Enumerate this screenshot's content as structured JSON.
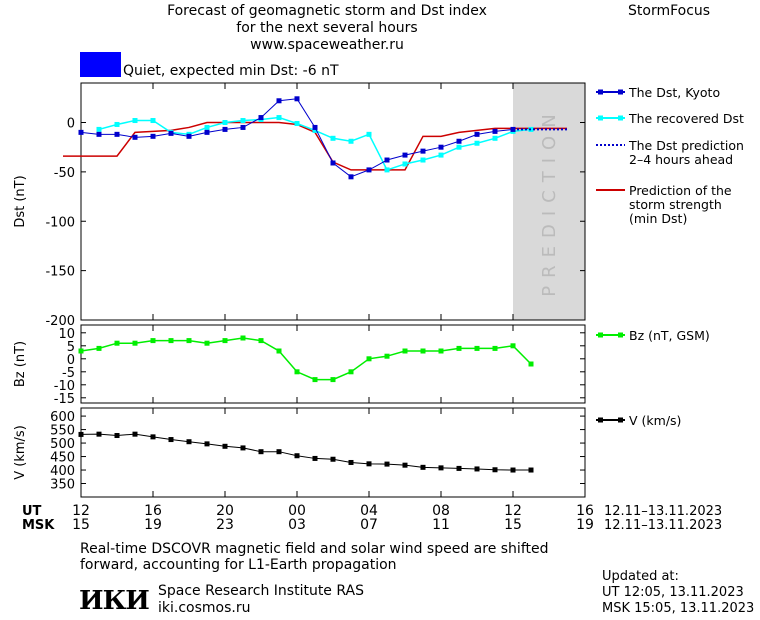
{
  "header": {
    "title_lines": [
      "Forecast of geomagnetic storm and Dst index",
      "for the next several hours",
      "www.spaceweather.ru"
    ],
    "brand": "StormFocus",
    "status_text": "Quiet, expected min Dst: -6 nT",
    "status_color": "#0000ff"
  },
  "colors": {
    "dst_kyoto": "#0000cc",
    "dst_recovered": "#00ffff",
    "dst_prediction": "#0000cc",
    "storm_prediction": "#cc0000",
    "bz": "#00ee00",
    "v": "#000000",
    "prediction_zone": "#d9d9d9"
  },
  "chart_data": [
    {
      "type": "line",
      "ylabel": "Dst (nT)",
      "ylim": [
        -200,
        40
      ],
      "yticks": [
        0,
        -50,
        -100,
        -150,
        -200
      ],
      "x_hours_range": [
        0,
        28
      ],
      "x_note": "hours from 12.11.2023 12:00 UT",
      "prediction_zone_label": "PREDICTION",
      "prediction_zone_from_hour": 24,
      "series": [
        {
          "name": "The Dst, Kyoto",
          "x": [
            0,
            1,
            2,
            3,
            4,
            5,
            6,
            7,
            8,
            9,
            10,
            11,
            12,
            13,
            14,
            15,
            16,
            17,
            18,
            19,
            20,
            21,
            22,
            23,
            24
          ],
          "y": [
            -10,
            -12,
            -12,
            -15,
            -14,
            -11,
            -14,
            -10,
            -7,
            -5,
            5,
            22,
            24,
            -5,
            -41,
            -55,
            -48,
            -38,
            -33,
            -29,
            -25,
            -19,
            -12,
            -9,
            -7
          ]
        },
        {
          "name": "The recovered Dst",
          "x": [
            1,
            2,
            3,
            4,
            5,
            6,
            7,
            8,
            9,
            10,
            11,
            12,
            13,
            14,
            15,
            16,
            17,
            18,
            19,
            20,
            21,
            22,
            23,
            24,
            25
          ],
          "y": [
            -7,
            -2,
            2,
            2,
            -10,
            -12,
            -5,
            0,
            2,
            3,
            5,
            -1,
            -8,
            -16,
            -19,
            -12,
            -48,
            -42,
            -38,
            -33,
            -25,
            -21,
            -16,
            -9,
            -7
          ]
        },
        {
          "name": "The Dst prediction\n2–4 hours ahead",
          "x": [
            24,
            25,
            26,
            27
          ],
          "y": [
            -7,
            -7,
            -7,
            -7
          ]
        },
        {
          "name": "Prediction of the\nstorm strength\n(min Dst)",
          "x": [
            -1,
            1,
            2,
            3,
            4,
            5,
            6,
            7,
            8,
            9,
            10,
            11,
            12,
            13,
            14,
            15,
            16,
            17,
            18,
            19,
            20,
            21,
            22,
            23,
            24,
            25,
            27
          ],
          "y": [
            -34,
            -34,
            -34,
            -10,
            -9,
            -8,
            -5,
            0,
            0,
            0,
            0,
            0,
            -2,
            -10,
            -40,
            -48,
            -48,
            -48,
            -48,
            -14,
            -14,
            -10,
            -8,
            -6,
            -6,
            -6,
            -6
          ]
        }
      ]
    },
    {
      "type": "line",
      "ylabel": "Bz (nT)",
      "ylim": [
        -17,
        13
      ],
      "yticks": [
        10,
        5,
        0,
        -5,
        -10,
        -15
      ],
      "series": [
        {
          "name": "Bz (nT, GSM)",
          "x": [
            0,
            1,
            2,
            3,
            4,
            5,
            6,
            7,
            8,
            9,
            10,
            11,
            12,
            13,
            14,
            15,
            16,
            17,
            18,
            19,
            20,
            21,
            22,
            23,
            24,
            25
          ],
          "y": [
            3,
            4,
            6,
            6,
            7,
            7,
            7,
            6,
            7,
            8,
            7,
            3,
            -5,
            -8,
            -8,
            -5,
            0,
            1,
            3,
            3,
            3,
            4,
            4,
            4,
            5,
            -2
          ]
        }
      ]
    },
    {
      "type": "line",
      "ylabel": "V (km/s)",
      "ylim": [
        300,
        630
      ],
      "yticks": [
        600,
        550,
        500,
        450,
        400,
        350
      ],
      "series": [
        {
          "name": "V (km/s)",
          "x": [
            0,
            1,
            2,
            3,
            4,
            5,
            6,
            7,
            8,
            9,
            10,
            11,
            12,
            13,
            14,
            15,
            16,
            17,
            18,
            19,
            20,
            21,
            22,
            23,
            24,
            25
          ],
          "y": [
            532,
            533,
            528,
            533,
            523,
            513,
            505,
            497,
            488,
            482,
            468,
            468,
            453,
            443,
            440,
            428,
            423,
            422,
            418,
            410,
            408,
            406,
            404,
            401,
            400,
            400
          ]
        }
      ]
    }
  ],
  "axis": {
    "ut_label": "UT",
    "msk_label": "MSK",
    "ut_ticks": [
      "12",
      "16",
      "20",
      "00",
      "04",
      "08",
      "12",
      "16"
    ],
    "msk_ticks": [
      "15",
      "19",
      "23",
      "03",
      "07",
      "11",
      "15",
      "19"
    ],
    "date_range": "12.11–13.11.2023"
  },
  "footer": {
    "note_line1": "Real-time DSCOVR magnetic field and solar wind speed are shifted",
    "note_line2": "forward, accounting for L1-Earth propagation",
    "logo_text": "ИКИ",
    "institute": "Space Research Institute RAS",
    "site": "iki.cosmos.ru",
    "updated_label": "Updated at:",
    "updated_ut": "UT   12:05, 13.11.2023",
    "updated_msk": "MSK 15:05, 13.11.2023"
  }
}
